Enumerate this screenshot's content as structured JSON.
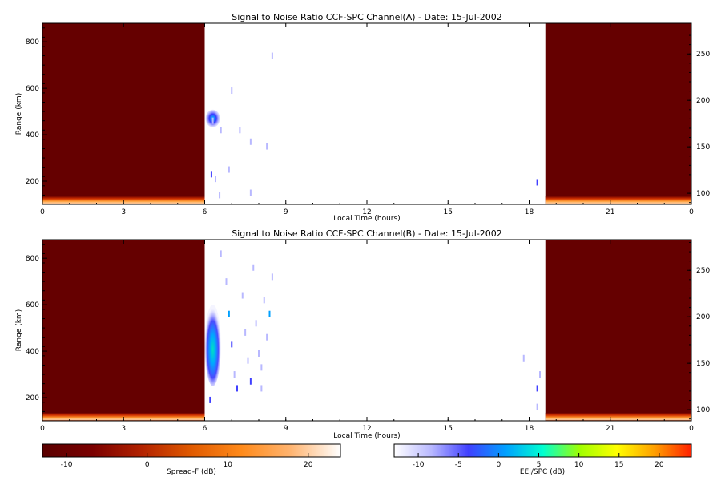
{
  "chart_data": [
    {
      "type": "heatmap",
      "title": "Signal to Noise Ratio CCF-SPC Channel(A) - Date: 15-Jul-2002",
      "xlabel": "Local Time (hours)",
      "ylabel": "Range (km)",
      "x_ticks": [
        "0",
        "3",
        "6",
        "9",
        "12",
        "15",
        "18",
        "21",
        "0"
      ],
      "y_ticks": [
        200,
        400,
        600,
        800
      ],
      "y2_ticks": [
        100,
        150,
        200,
        250
      ],
      "xlim": [
        0,
        24
      ],
      "ylim": [
        100,
        880
      ],
      "y2lim": [
        88,
        283
      ],
      "night_blocks": [
        [
          0,
          6.0
        ],
        [
          18.6,
          24
        ]
      ],
      "scatter_echoes": [
        {
          "t": 6.3,
          "r": 470,
          "snr": -3
        },
        {
          "t": 6.3,
          "r": 460,
          "snr": -8
        },
        {
          "t": 6.25,
          "r": 230,
          "snr": -6
        },
        {
          "t": 6.4,
          "r": 210,
          "snr": -8
        },
        {
          "t": 6.55,
          "r": 140,
          "snr": -9
        },
        {
          "t": 6.6,
          "r": 420,
          "snr": -9
        },
        {
          "t": 6.9,
          "r": 250,
          "snr": -7
        },
        {
          "t": 7.0,
          "r": 590,
          "snr": -10
        },
        {
          "t": 7.3,
          "r": 420,
          "snr": -9
        },
        {
          "t": 7.7,
          "r": 370,
          "snr": -10
        },
        {
          "t": 7.7,
          "r": 150,
          "snr": -8
        },
        {
          "t": 8.3,
          "r": 350,
          "snr": -10
        },
        {
          "t": 8.5,
          "r": 740,
          "snr": -10
        },
        {
          "t": 18.3,
          "r": 195,
          "snr": -6
        }
      ]
    },
    {
      "type": "heatmap",
      "title": "Signal to Noise Ratio CCF-SPC Channel(B) - Date: 15-Jul-2002",
      "xlabel": "Local Time (hours)",
      "ylabel": "Range (km)",
      "x_ticks": [
        "0",
        "3",
        "6",
        "9",
        "12",
        "15",
        "18",
        "21",
        "0"
      ],
      "y_ticks": [
        200,
        400,
        600,
        800
      ],
      "y2_ticks": [
        100,
        150,
        200,
        250
      ],
      "xlim": [
        0,
        24
      ],
      "ylim": [
        100,
        880
      ],
      "y2lim": [
        88,
        283
      ],
      "night_blocks": [
        [
          0,
          6.0
        ],
        [
          18.6,
          24
        ]
      ],
      "plume": {
        "t0": 6.0,
        "t1": 6.6,
        "r0": 250,
        "r1": 600,
        "snr_core": 5
      },
      "scatter_echoes": [
        {
          "t": 6.2,
          "r": 190,
          "snr": -4
        },
        {
          "t": 6.6,
          "r": 820,
          "snr": -9
        },
        {
          "t": 6.8,
          "r": 700,
          "snr": -9
        },
        {
          "t": 6.9,
          "r": 560,
          "snr": 0
        },
        {
          "t": 7.0,
          "r": 430,
          "snr": -6
        },
        {
          "t": 7.1,
          "r": 300,
          "snr": -7
        },
        {
          "t": 7.2,
          "r": 240,
          "snr": -5
        },
        {
          "t": 7.4,
          "r": 640,
          "snr": -9
        },
        {
          "t": 7.5,
          "r": 480,
          "snr": -7
        },
        {
          "t": 7.6,
          "r": 360,
          "snr": -8
        },
        {
          "t": 7.7,
          "r": 270,
          "snr": -6
        },
        {
          "t": 7.8,
          "r": 760,
          "snr": -9
        },
        {
          "t": 7.9,
          "r": 520,
          "snr": -8
        },
        {
          "t": 8.0,
          "r": 390,
          "snr": -7
        },
        {
          "t": 8.1,
          "r": 330,
          "snr": -8
        },
        {
          "t": 8.2,
          "r": 620,
          "snr": -9
        },
        {
          "t": 8.3,
          "r": 460,
          "snr": -8
        },
        {
          "t": 8.4,
          "r": 560,
          "snr": 1
        },
        {
          "t": 8.5,
          "r": 720,
          "snr": -9
        },
        {
          "t": 8.1,
          "r": 240,
          "snr": -7
        },
        {
          "t": 18.3,
          "r": 240,
          "snr": -2
        },
        {
          "t": 18.3,
          "r": 160,
          "snr": -8
        },
        {
          "t": 18.4,
          "r": 300,
          "snr": -9
        },
        {
          "t": 17.8,
          "r": 370,
          "snr": -10
        }
      ]
    }
  ],
  "colorbars": {
    "left": {
      "label": "Spread-F (dB)",
      "ticks": [
        "-10",
        "0",
        "10",
        "20"
      ],
      "range": [
        -13,
        24
      ],
      "stops": [
        "#5a0000",
        "#7a0000",
        "#b22200",
        "#e05a00",
        "#ff8a1a",
        "#ffb470",
        "#ffffff"
      ]
    },
    "right": {
      "label": "EEJ/SPC (dB)",
      "ticks": [
        "-10",
        "-5",
        "0",
        "5",
        "10",
        "15",
        "20"
      ],
      "range": [
        -13,
        24
      ],
      "stops": [
        "#ffffff",
        "#b8b8ff",
        "#4040ff",
        "#00a0ff",
        "#00ffd0",
        "#a0ff00",
        "#ffff00",
        "#ffa000",
        "#ff2000"
      ]
    }
  }
}
